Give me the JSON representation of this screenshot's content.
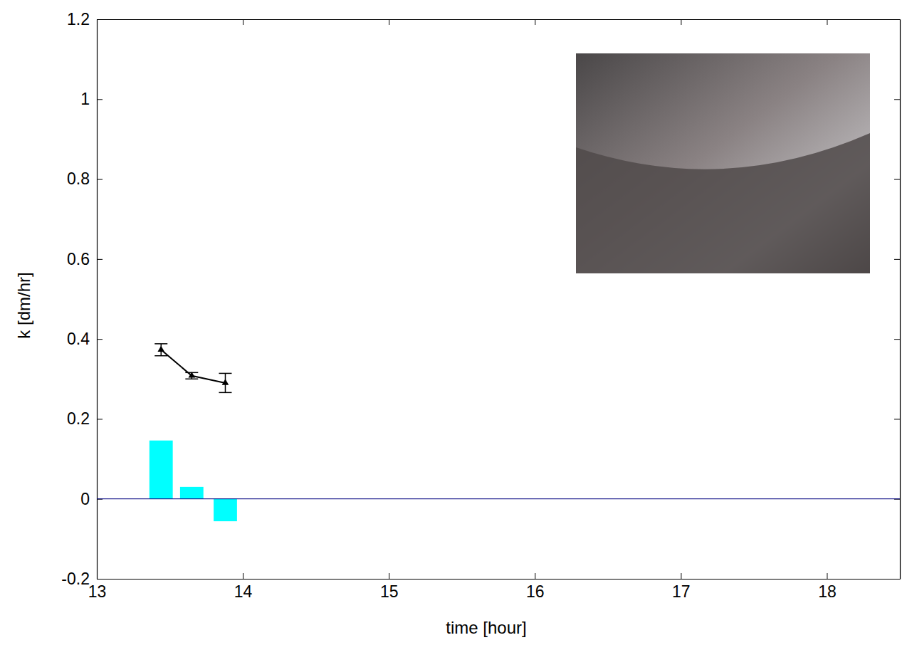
{
  "chart_data": {
    "type": "line",
    "x_label": "time [hour]",
    "y_label": "k [dm/hr]",
    "x": [
      13.44,
      13.65,
      13.88
    ],
    "series": [
      {
        "type": "line",
        "color": "#000000",
        "marker": "triangle",
        "line_style": "solid",
        "values": [
          0.373,
          0.308,
          0.29
        ],
        "errors": [
          0.015,
          0.008,
          0.024
        ]
      },
      {
        "type": "bar",
        "color": "#00ffff",
        "values": [
          0.146,
          0.03,
          -0.056
        ]
      }
    ],
    "xlim": [
      13,
      18.5
    ],
    "xticks": [
      13,
      14,
      15,
      16,
      17,
      18
    ],
    "ylim": [
      -0.2,
      1.2
    ],
    "yticks": [
      -0.2,
      0,
      0.2,
      0.4,
      0.6,
      0.8,
      1,
      1.2
    ],
    "grid": false
  }
}
